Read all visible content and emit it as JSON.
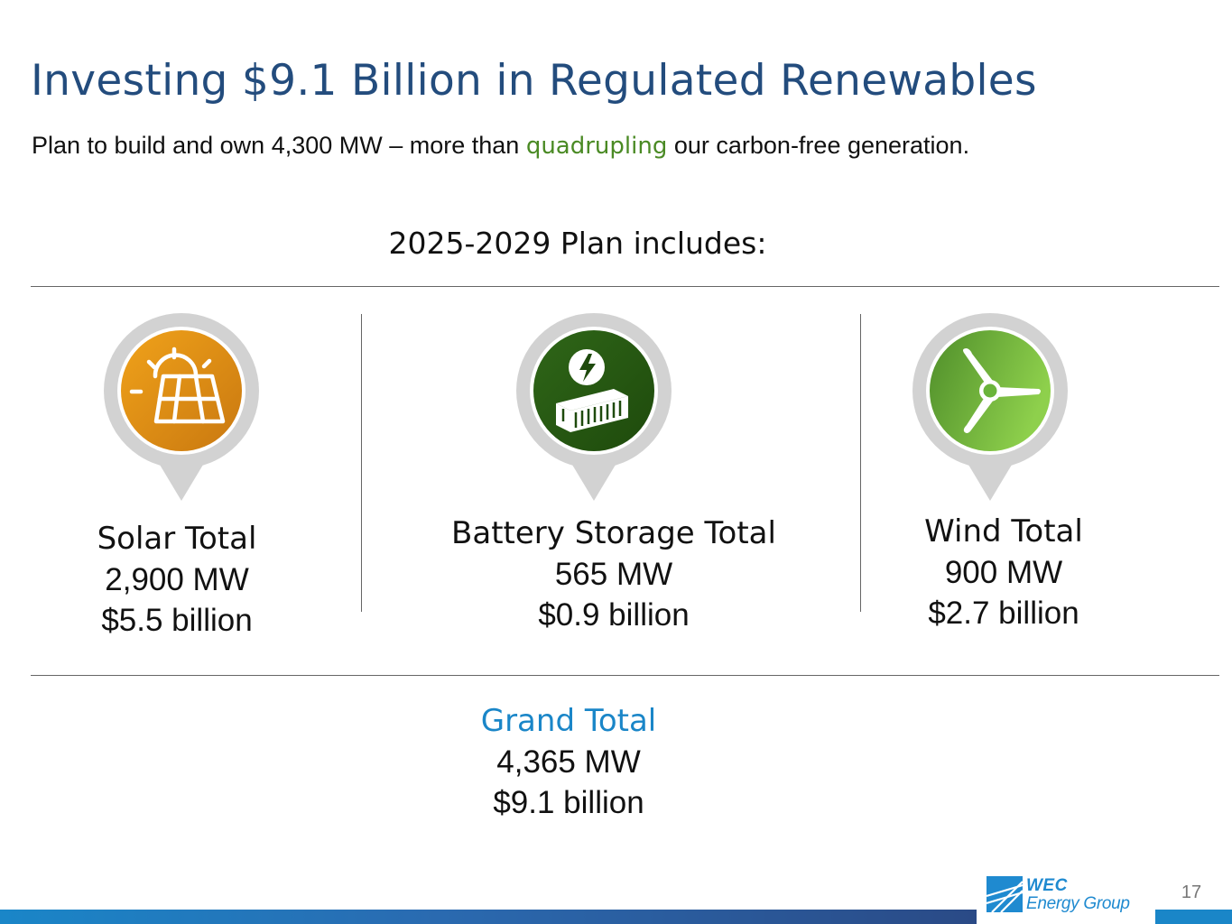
{
  "slide": {
    "title": "Investing $9.1 Billion in Regulated Renewables",
    "subtitle": {
      "before": "Plan to build and own 4,300 MW – more than ",
      "highlight": "quadrupling",
      "after": " our carbon-free generation."
    },
    "plan_heading": "2025-2029 Plan includes:",
    "categories": [
      {
        "name": "Solar Total",
        "capacity": "2,900 MW",
        "investment": "$5.5 billion",
        "icon": "solar-panel-icon",
        "color": "#e09417"
      },
      {
        "name": "Battery Storage Total",
        "capacity": "565 MW",
        "investment": "$0.9 billion",
        "icon": "battery-container-icon",
        "color": "#2a5a12"
      },
      {
        "name": "Wind Total",
        "capacity": "900 MW",
        "investment": "$2.7 billion",
        "icon": "wind-turbine-icon",
        "color": "#6ab43a"
      }
    ],
    "grand_total": {
      "name": "Grand Total",
      "capacity": "4,365 MW",
      "investment": "$9.1 billion"
    }
  },
  "footer": {
    "logo_line1": "WEC",
    "logo_line2": "Energy Group",
    "page_number": "17"
  },
  "colors": {
    "title": "#234c7d",
    "highlight": "#4a8a24",
    "grand_total": "#1a86c8",
    "pin_gray": "#d2d2d2"
  }
}
